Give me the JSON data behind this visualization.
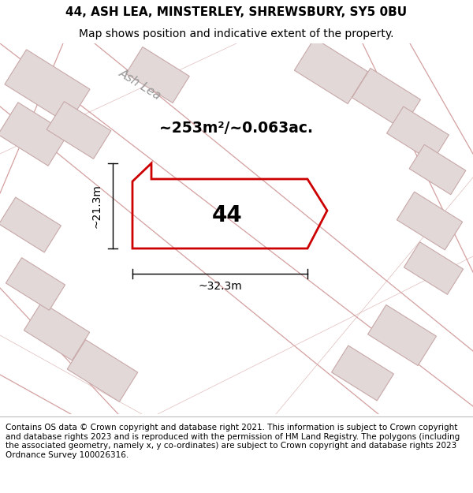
{
  "title_line1": "44, ASH LEA, MINSTERLEY, SHREWSBURY, SY5 0BU",
  "title_line2": "Map shows position and indicative extent of the property.",
  "footer_text": "Contains OS data © Crown copyright and database right 2021. This information is subject to Crown copyright and database rights 2023 and is reproduced with the permission of HM Land Registry. The polygons (including the associated geometry, namely x, y co-ordinates) are subject to Crown copyright and database rights 2023 Ordnance Survey 100026316.",
  "area_label": "~253m²/~0.063ac.",
  "number_label": "44",
  "dim_width": "~32.3m",
  "dim_height": "~21.3m",
  "bg_map_color": "#f5f0f0",
  "road_label": "Ash Lea",
  "plot_edge_color": "#cc0000",
  "building_fill": "#e2d8d8",
  "building_edge_color": "#c8a8a8",
  "road_line_color": "#d4a0a0",
  "title_fontsize": 11,
  "subtitle_fontsize": 10,
  "footer_fontsize": 7.5
}
